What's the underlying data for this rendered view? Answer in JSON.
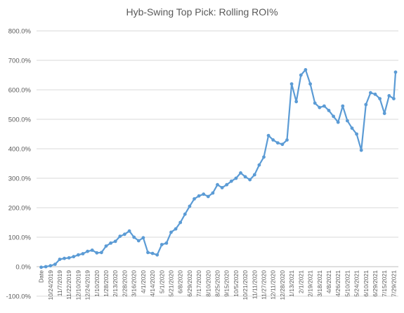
{
  "chart_data": {
    "type": "line",
    "title": "Hyb-Swing Top Pick: Rolling ROI%",
    "xlabel": "",
    "ylabel": "",
    "ylim": [
      -100,
      800
    ],
    "y_ticks": [
      "-100.0%",
      "0.0%",
      "100.0%",
      "200.0%",
      "300.0%",
      "400.0%",
      "500.0%",
      "600.0%",
      "700.0%",
      "800.0%"
    ],
    "x_ticks": [
      "Date",
      "10/24/2019",
      "11/7/2019",
      "11/22/2019",
      "12/10/2019",
      "12/24/2019",
      "1/10/2020",
      "1/28/2020",
      "2/13/2020",
      "2/28/2020",
      "3/16/2020",
      "4/1/2020",
      "4/14/2020",
      "5/1/2020",
      "5/21/2020",
      "6/8/2020",
      "6/29/2020",
      "7/17/2020",
      "8/10/2020",
      "8/25/2020",
      "9/15/2020",
      "10/5/2020",
      "10/21/2020",
      "11/11/2020",
      "11/27/2020",
      "12/11/2020",
      "12/28/2020",
      "1/13/2021",
      "2/1/2021",
      "2/19/2021",
      "3/18/2021",
      "4/8/2021",
      "4/26/2021",
      "5/10/2021",
      "5/24/2021",
      "6/10/2021",
      "6/29/2021",
      "7/15/2021",
      "7/29/2021"
    ],
    "grid": true,
    "legend": "none",
    "series": [
      {
        "color": "#5b9bd5",
        "x_positions": [
          0,
          0.5,
          1,
          1.5,
          2,
          2.5,
          3,
          3.5,
          4,
          4.5,
          5,
          5.5,
          6,
          6.5,
          7,
          7.5,
          8,
          8.5,
          9,
          9.5,
          10,
          10.5,
          11,
          11.5,
          12,
          12.5,
          13,
          13.5,
          14,
          14.5,
          15,
          15.5,
          16,
          16.5,
          17,
          17.5,
          18,
          18.5,
          19,
          19.5,
          20,
          20.5,
          21,
          21.5,
          22,
          22.5,
          23,
          23.5,
          24,
          24.5,
          25,
          25.5,
          26,
          26.5,
          27,
          27.5,
          28,
          28.5,
          29,
          29.5,
          30,
          30.5,
          31,
          31.5,
          32,
          32.5,
          33,
          33.5,
          34,
          34.5,
          35,
          35.5,
          36,
          36.5,
          37,
          37.5,
          38,
          38.2
        ],
        "values": [
          -2,
          0,
          3,
          8,
          25,
          28,
          30,
          34,
          40,
          44,
          52,
          56,
          47,
          48,
          70,
          80,
          86,
          103,
          110,
          121,
          100,
          88,
          98,
          48,
          45,
          40,
          75,
          80,
          117,
          128,
          150,
          178,
          205,
          230,
          240,
          246,
          238,
          250,
          278,
          268,
          278,
          290,
          300,
          318,
          305,
          295,
          312,
          345,
          372,
          445,
          430,
          420,
          415,
          430,
          620,
          560,
          650,
          668,
          620,
          555,
          540,
          545,
          530,
          510,
          490,
          545,
          495,
          470,
          450,
          395,
          550,
          590,
          585,
          570,
          520,
          580,
          570,
          660
        ]
      }
    ]
  }
}
